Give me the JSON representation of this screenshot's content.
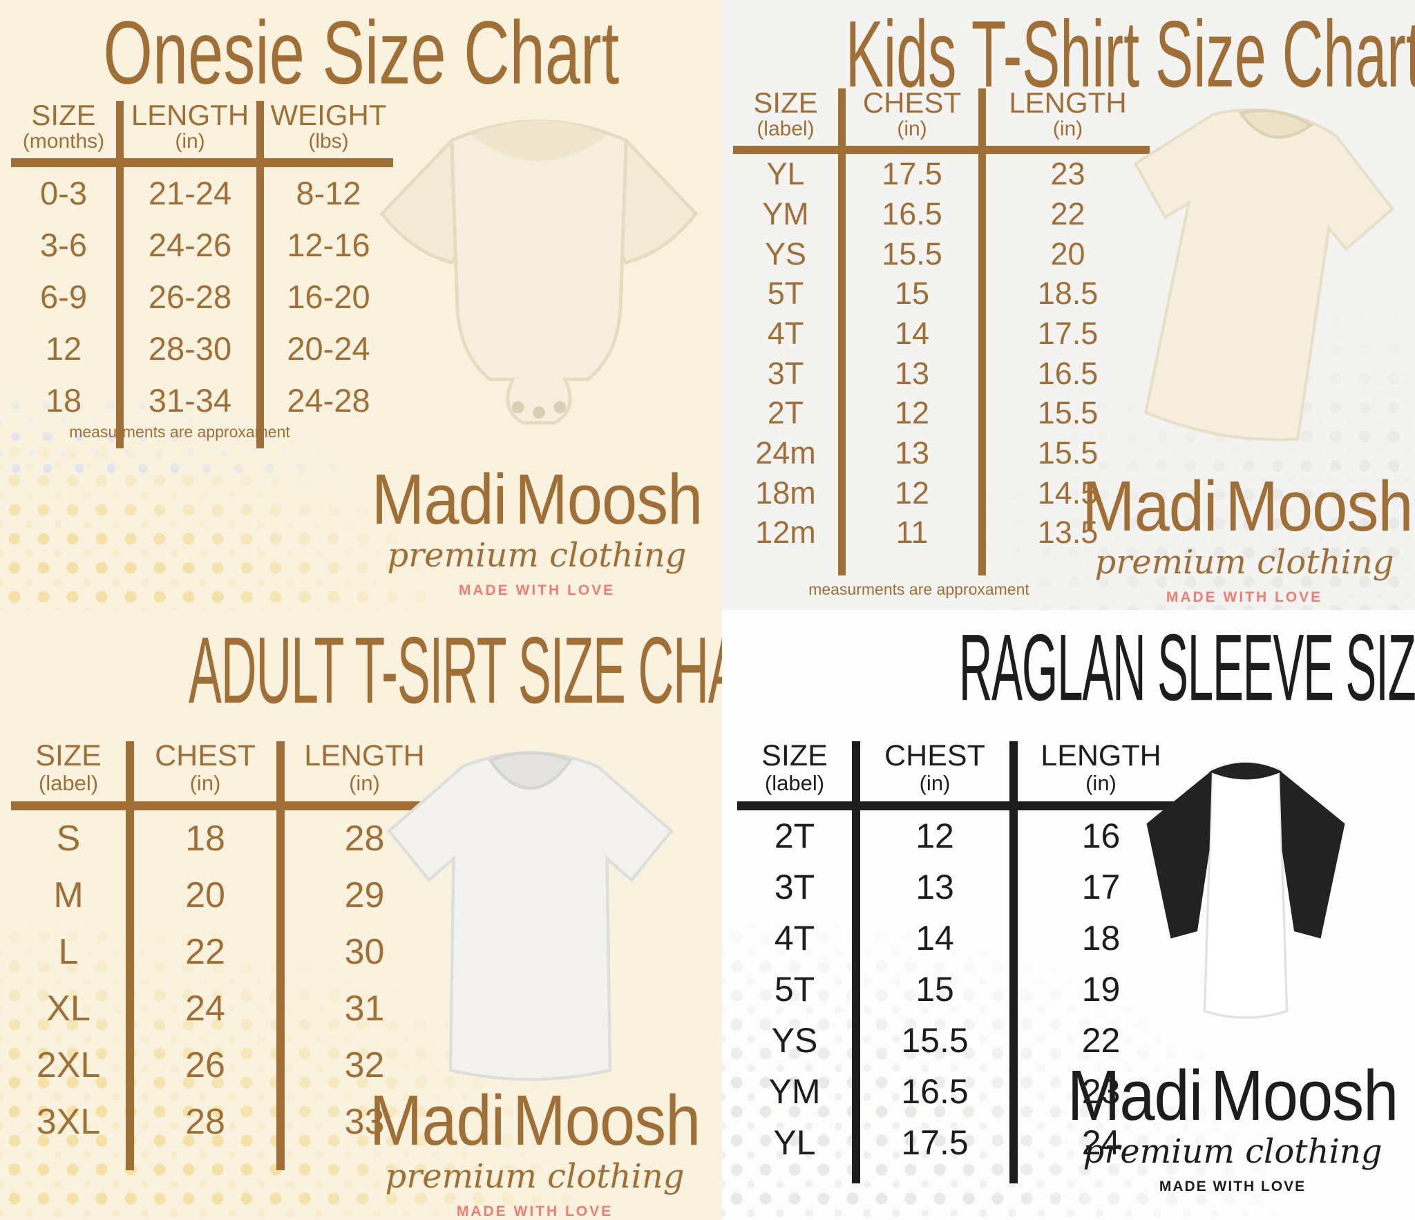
{
  "brand": {
    "word1": "Madi",
    "word2": "Moosh",
    "name": "MadiMoosh",
    "tagline": "premium clothing",
    "motto": "MADE WITH LOVE"
  },
  "colors": {
    "brown_text": "#a06f35",
    "black_text": "#1d1d1d",
    "salmon_motto": "#ee7e74",
    "cream_background": "#f9f2de",
    "gray_background": "#f3f3f1",
    "white_background": "#fdfdfd",
    "yellow_dots": "#f4e1a6",
    "gray_dots": "#e9e9e6"
  },
  "charts": [
    {
      "title": "Onesie Size Chart",
      "image": "cream-baby-onesie-photo",
      "columns": [
        {
          "label": "SIZE",
          "unit": "(months)"
        },
        {
          "label": "LENGTH",
          "unit": "(in)"
        },
        {
          "label": "WEIGHT",
          "unit": "(lbs)"
        }
      ],
      "rows": [
        [
          "0-3",
          "21-24",
          "8-12"
        ],
        [
          "3-6",
          "24-26",
          "12-16"
        ],
        [
          "6-9",
          "26-28",
          "16-20"
        ],
        [
          "12",
          "28-30",
          "20-24"
        ],
        [
          "18",
          "31-34",
          "24-28"
        ]
      ],
      "footnote": "measurments are approxament"
    },
    {
      "title": "Kids T-Shirt Size Chart",
      "image": "cream-kids-tshirt-photo",
      "columns": [
        {
          "label": "SIZE",
          "unit": "(label)"
        },
        {
          "label": "CHEST",
          "unit": "(in)"
        },
        {
          "label": "LENGTH",
          "unit": "(in)"
        }
      ],
      "rows": [
        [
          "YL",
          "17.5",
          "23"
        ],
        [
          "YM",
          "16.5",
          "22"
        ],
        [
          "YS",
          "15.5",
          "20"
        ],
        [
          "5T",
          "15",
          "18.5"
        ],
        [
          "4T",
          "14",
          "17.5"
        ],
        [
          "3T",
          "13",
          "16.5"
        ],
        [
          "2T",
          "12",
          "15.5"
        ],
        [
          "24m",
          "13",
          "15.5"
        ],
        [
          "18m",
          "12",
          "14.5"
        ],
        [
          "12m",
          "11",
          "13.5"
        ]
      ],
      "footnote": "measurments are approxament"
    },
    {
      "title": "ADULT T-SIRT SIZE CHART",
      "image": "white-adult-tshirt-photo",
      "columns": [
        {
          "label": "SIZE",
          "unit": "(label)"
        },
        {
          "label": "CHEST",
          "unit": "(in)"
        },
        {
          "label": "LENGTH",
          "unit": "(in)"
        }
      ],
      "rows": [
        [
          "S",
          "18",
          "28"
        ],
        [
          "M",
          "20",
          "29"
        ],
        [
          "L",
          "22",
          "30"
        ],
        [
          "XL",
          "24",
          "31"
        ],
        [
          "2XL",
          "26",
          "32"
        ],
        [
          "3XL",
          "28",
          "33"
        ]
      ]
    },
    {
      "title": "RAGLAN SLEEVE SIZE CHART",
      "image": "black-white-raglan-shirt-photo",
      "columns": [
        {
          "label": "SIZE",
          "unit": "(label)"
        },
        {
          "label": "CHEST",
          "unit": "(in)"
        },
        {
          "label": "LENGTH",
          "unit": "(in)"
        }
      ],
      "rows": [
        [
          "2T",
          "12",
          "16"
        ],
        [
          "3T",
          "13",
          "17"
        ],
        [
          "4T",
          "14",
          "18"
        ],
        [
          "5T",
          "15",
          "19"
        ],
        [
          "YS",
          "15.5",
          "22"
        ],
        [
          "YM",
          "16.5",
          "23"
        ],
        [
          "YL",
          "17.5",
          "24"
        ]
      ]
    }
  ]
}
